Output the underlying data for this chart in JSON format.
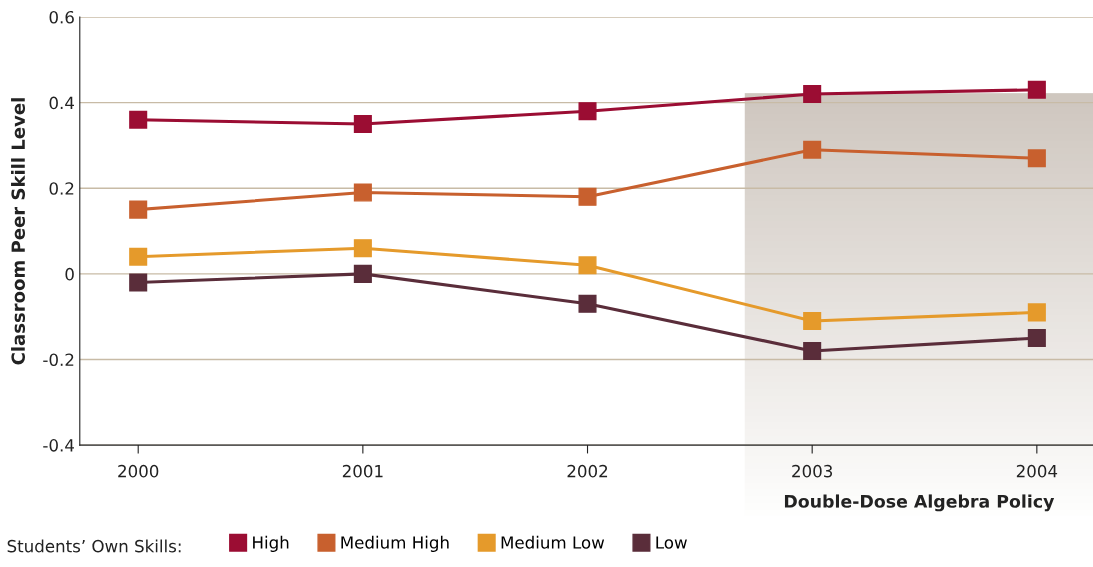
{
  "chart_data": {
    "type": "line",
    "ylabel": "Classroom Peer Skill Level",
    "legend_title": "Students’ Own Skills:",
    "x": [
      2000,
      2001,
      2002,
      2003,
      2004
    ],
    "xlim": [
      1999.74,
      2004.25
    ],
    "xticks": [
      2000,
      2001,
      2002,
      2003,
      2004
    ],
    "ylim": [
      -0.4,
      0.6
    ],
    "yticks": [
      -0.4,
      -0.2,
      0,
      0.2,
      0.4,
      0.6
    ],
    "grid": "y",
    "legend": "bottom",
    "marker": "square",
    "line_style": "solid",
    "series": [
      {
        "name": "High",
        "color": "#9b0d33",
        "values": [
          0.36,
          0.35,
          0.38,
          0.42,
          0.43
        ]
      },
      {
        "name": "Medium High",
        "color": "#c8602e",
        "values": [
          0.15,
          0.19,
          0.18,
          0.29,
          0.27
        ]
      },
      {
        "name": "Medium Low",
        "color": "#e59a2b",
        "values": [
          0.04,
          0.06,
          0.02,
          -0.11,
          -0.09
        ]
      },
      {
        "name": "Low",
        "color": "#5a2d3a",
        "values": [
          -0.02,
          0.0,
          -0.07,
          -0.18,
          -0.15
        ]
      }
    ],
    "bands": [
      {
        "axis": "x",
        "from": 2002.7,
        "to": 2004.25,
        "label": "Double-Dose Algebra Policy",
        "color": "#cfc7bf"
      }
    ]
  }
}
